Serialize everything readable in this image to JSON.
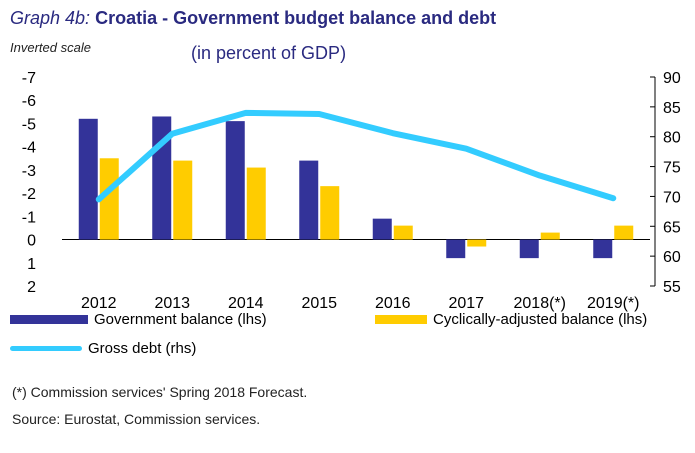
{
  "header": {
    "title_prefix": "Graph 4b:",
    "title_main": "Croatia - Government budget balance and debt",
    "scale_note": "Inverted scale",
    "subtitle": "(in percent of GDP)"
  },
  "colors": {
    "government_balance": "#333399",
    "cyclically_adjusted": "#ffcc00",
    "gross_debt": "#33ccff",
    "title": "#2a2a80"
  },
  "chart_data": {
    "type": "bar",
    "categories": [
      "2012",
      "2013",
      "2014",
      "2015",
      "2016",
      "2017",
      "2018(*)",
      "2019(*)"
    ],
    "series": [
      {
        "name": "Government balance (lhs)",
        "type": "bar",
        "axis": "left",
        "values": [
          -5.2,
          -5.3,
          -5.1,
          -3.4,
          -0.9,
          0.8,
          0.8,
          0.8
        ]
      },
      {
        "name": "Cyclically-adjusted balance (lhs)",
        "type": "bar",
        "axis": "left",
        "values": [
          -3.5,
          -3.4,
          -3.1,
          -2.3,
          -0.6,
          0.3,
          -0.3,
          -0.6
        ]
      },
      {
        "name": "Gross debt (rhs)",
        "type": "line",
        "axis": "right",
        "values": [
          69.5,
          80.5,
          84.0,
          83.8,
          80.6,
          78.0,
          73.5,
          69.7
        ]
      }
    ],
    "left_axis": {
      "inverted": true,
      "ylim": [
        -7,
        2
      ],
      "ticks": [
        "-7",
        "-6",
        "-5",
        "-4",
        "-3",
        "-2",
        "-1",
        "0",
        "1",
        "2"
      ]
    },
    "right_axis": {
      "ylim": [
        55,
        90
      ],
      "ticks": [
        "90",
        "85",
        "80",
        "75",
        "70",
        "65",
        "60",
        "55"
      ]
    },
    "legend_placement": "bottom",
    "grid": false
  },
  "legend": {
    "gov_balance": "Government balance (lhs)",
    "cyc_balance": "Cyclically-adjusted balance (lhs)",
    "gross_debt": "Gross debt (rhs)"
  },
  "footnotes": {
    "forecast_note": "(*) Commission services' Spring 2018 Forecast.",
    "source": "Source: Eurostat, Commission services."
  }
}
